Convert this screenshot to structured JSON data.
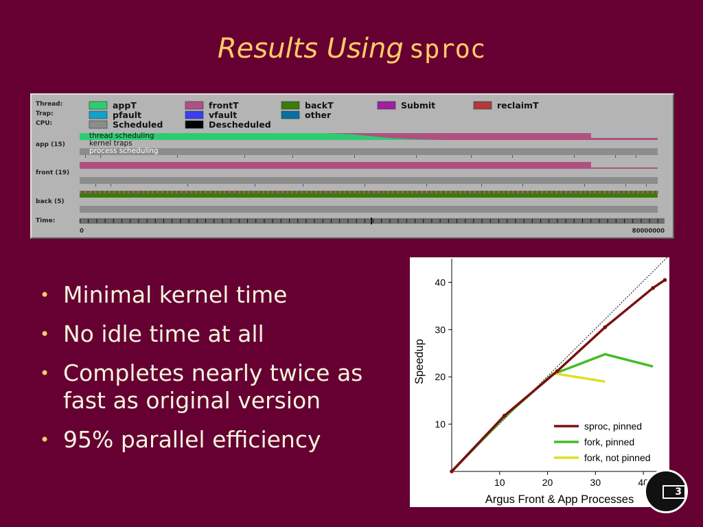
{
  "slide": {
    "title_italic": "Results Using",
    "title_code": "sproc",
    "page_number": "3"
  },
  "bullets": [
    "Minimal kernel time",
    "No idle time at all",
    "Completes nearly twice as fast as original version",
    "95% parallel efficiency"
  ],
  "trace_view": {
    "row_labels": {
      "thread": "Thread:",
      "trap": "Trap:",
      "cpu": "CPU:",
      "app": "app (15)",
      "front": "front (19)",
      "back": "back (5)",
      "time": "Time:"
    },
    "legend": [
      {
        "label": "appT",
        "color": "#2ecc71"
      },
      {
        "label": "frontT",
        "color": "#b05080"
      },
      {
        "label": "backT",
        "color": "#3d7a0a"
      },
      {
        "label": "Submit",
        "color": "#a020a0"
      },
      {
        "label": "reclaimT",
        "color": "#b03a3a"
      },
      {
        "label": "pfault",
        "color": "#14a0c8"
      },
      {
        "label": "vfault",
        "color": "#3c3cf0"
      },
      {
        "label": "other",
        "color": "#0870a0"
      },
      {
        "label": "Scheduled",
        "color": "#8c8c8c"
      },
      {
        "label": "Descheduled",
        "color": "#000000"
      }
    ],
    "overlay_labels": [
      "thread scheduling",
      "kernel traps",
      "process scheduling"
    ],
    "time_start": "0",
    "time_end": "80000000"
  },
  "chart_data": {
    "type": "line",
    "xlabel": "Argus Front & App Processes",
    "ylabel": "Speedup",
    "xlim": [
      0,
      45
    ],
    "ylim": [
      0,
      45
    ],
    "xticks": [
      10,
      20,
      30,
      40
    ],
    "yticks": [
      10,
      20,
      30,
      40
    ],
    "ideal_line": {
      "style": "dotted",
      "points": [
        [
          0,
          0
        ],
        [
          45,
          45
        ]
      ]
    },
    "legend_position": "bottom-right",
    "series": [
      {
        "name": "sproc, pinned",
        "color": "#7a1010",
        "points": [
          [
            0,
            0
          ],
          [
            11,
            11.8
          ],
          [
            22,
            21.2
          ],
          [
            32,
            30.5
          ],
          [
            42,
            38.8
          ],
          [
            44.5,
            40.5
          ]
        ]
      },
      {
        "name": "fork, pinned",
        "color": "#44bb22",
        "points": [
          [
            0,
            0
          ],
          [
            11,
            11.5
          ],
          [
            21,
            20.5
          ],
          [
            32,
            24.8
          ],
          [
            42,
            22.2
          ]
        ]
      },
      {
        "name": "fork, not pinned",
        "color": "#dde022",
        "points": [
          [
            21,
            20.8
          ],
          [
            32,
            19
          ]
        ]
      }
    ]
  }
}
